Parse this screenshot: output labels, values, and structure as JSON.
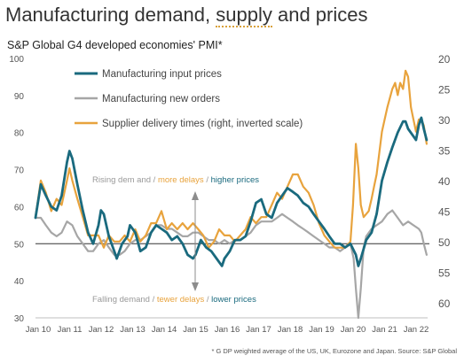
{
  "title": {
    "pre": "Manufacturing demand, ",
    "underlined": "supply",
    "post": " and prices"
  },
  "subtitle": "S&P Global G4 developed economies' PMI*",
  "footnote": "* G DP weighted average of the US, UK, Eurozone and Japan.  Source: S&P Global",
  "annotations": {
    "top": [
      {
        "text": "Rising dem and  / ",
        "color": "#999999"
      },
      {
        "text": "more delays",
        "color": "#e8a33d"
      },
      {
        "text": " / ",
        "color": "#999999"
      },
      {
        "text": "higher prices",
        "color": "#1a6a7e"
      }
    ],
    "bottom": [
      {
        "text": "Falling demand  / ",
        "color": "#999999"
      },
      {
        "text": "tewer delays",
        "color": "#e8a33d"
      },
      {
        "text": " / ",
        "color": "#999999"
      },
      {
        "text": "lower prices",
        "color": "#1a6a7e"
      }
    ]
  },
  "chart_data": {
    "type": "line",
    "grid": false,
    "legend_position": "top-left",
    "x_ticks": [
      "Jan 10",
      "Jan 11",
      "Jan 12",
      "Jan 13",
      "Jan 14",
      "Jan 15",
      "Jan 16",
      "Jan 17",
      "Jan 18",
      "Jan 19",
      "Jan 20",
      "Jan 21",
      "Jan 22"
    ],
    "x_range": [
      2010.0,
      2022.45
    ],
    "y_left": {
      "min": 30,
      "max": 100,
      "ticks": [
        30,
        40,
        50,
        60,
        70,
        80,
        90,
        100
      ]
    },
    "y_right": {
      "min": 20,
      "max": 62.5,
      "inverted": true,
      "ticks": [
        20,
        25,
        30,
        35,
        40,
        45,
        50,
        55,
        60
      ]
    },
    "reference_line": 50,
    "series": [
      {
        "name": "Manufacturing input prices",
        "axis": "left",
        "color": "#1a6a7e",
        "points": [
          [
            2010.0,
            57
          ],
          [
            2010.17,
            66
          ],
          [
            2010.33,
            63
          ],
          [
            2010.5,
            60
          ],
          [
            2010.67,
            59
          ],
          [
            2010.83,
            63
          ],
          [
            2011.0,
            72
          ],
          [
            2011.08,
            75
          ],
          [
            2011.17,
            73
          ],
          [
            2011.33,
            66
          ],
          [
            2011.5,
            59
          ],
          [
            2011.67,
            53
          ],
          [
            2011.83,
            50
          ],
          [
            2012.0,
            55
          ],
          [
            2012.08,
            59
          ],
          [
            2012.17,
            58
          ],
          [
            2012.33,
            52
          ],
          [
            2012.5,
            48
          ],
          [
            2012.58,
            46
          ],
          [
            2012.75,
            50
          ],
          [
            2012.92,
            52
          ],
          [
            2013.0,
            55
          ],
          [
            2013.17,
            53
          ],
          [
            2013.33,
            48
          ],
          [
            2013.5,
            49
          ],
          [
            2013.67,
            53
          ],
          [
            2013.83,
            55
          ],
          [
            2014.0,
            54
          ],
          [
            2014.17,
            53
          ],
          [
            2014.33,
            51
          ],
          [
            2014.5,
            52
          ],
          [
            2014.67,
            50
          ],
          [
            2014.83,
            47
          ],
          [
            2015.0,
            46
          ],
          [
            2015.08,
            47
          ],
          [
            2015.25,
            51
          ],
          [
            2015.42,
            49
          ],
          [
            2015.58,
            48
          ],
          [
            2015.75,
            46
          ],
          [
            2015.92,
            44
          ],
          [
            2016.0,
            46
          ],
          [
            2016.17,
            48
          ],
          [
            2016.33,
            51
          ],
          [
            2016.5,
            51
          ],
          [
            2016.67,
            52
          ],
          [
            2016.83,
            56
          ],
          [
            2017.0,
            61
          ],
          [
            2017.17,
            62
          ],
          [
            2017.33,
            58
          ],
          [
            2017.5,
            57
          ],
          [
            2017.67,
            61
          ],
          [
            2017.83,
            63
          ],
          [
            2018.0,
            65
          ],
          [
            2018.17,
            64
          ],
          [
            2018.33,
            63
          ],
          [
            2018.5,
            61
          ],
          [
            2018.67,
            60
          ],
          [
            2018.83,
            58
          ],
          [
            2019.0,
            56
          ],
          [
            2019.17,
            54
          ],
          [
            2019.33,
            52
          ],
          [
            2019.5,
            50
          ],
          [
            2019.67,
            50
          ],
          [
            2019.83,
            49
          ],
          [
            2020.0,
            50
          ],
          [
            2020.17,
            47
          ],
          [
            2020.25,
            44
          ],
          [
            2020.33,
            46
          ],
          [
            2020.5,
            51
          ],
          [
            2020.67,
            53
          ],
          [
            2020.83,
            58
          ],
          [
            2021.0,
            67
          ],
          [
            2021.17,
            72
          ],
          [
            2021.33,
            76
          ],
          [
            2021.5,
            80
          ],
          [
            2021.67,
            83
          ],
          [
            2021.75,
            83
          ],
          [
            2021.83,
            81
          ],
          [
            2022.0,
            79
          ],
          [
            2022.08,
            78
          ],
          [
            2022.17,
            82
          ],
          [
            2022.25,
            84
          ],
          [
            2022.33,
            81
          ],
          [
            2022.42,
            78
          ]
        ]
      },
      {
        "name": "Manufacturing new orders",
        "axis": "left",
        "color": "#a6a6a6",
        "points": [
          [
            2010.0,
            57
          ],
          [
            2010.17,
            57
          ],
          [
            2010.33,
            55
          ],
          [
            2010.5,
            53
          ],
          [
            2010.67,
            52
          ],
          [
            2010.83,
            53
          ],
          [
            2011.0,
            56
          ],
          [
            2011.17,
            55
          ],
          [
            2011.33,
            52
          ],
          [
            2011.5,
            50
          ],
          [
            2011.67,
            48
          ],
          [
            2011.83,
            48
          ],
          [
            2012.0,
            50
          ],
          [
            2012.17,
            51
          ],
          [
            2012.33,
            49
          ],
          [
            2012.5,
            47
          ],
          [
            2012.67,
            47
          ],
          [
            2012.83,
            48
          ],
          [
            2013.0,
            50
          ],
          [
            2013.17,
            51
          ],
          [
            2013.33,
            51
          ],
          [
            2013.5,
            52
          ],
          [
            2013.67,
            53
          ],
          [
            2013.83,
            55
          ],
          [
            2014.0,
            55
          ],
          [
            2014.17,
            54
          ],
          [
            2014.33,
            54
          ],
          [
            2014.5,
            53
          ],
          [
            2014.67,
            52
          ],
          [
            2014.83,
            52
          ],
          [
            2015.0,
            53
          ],
          [
            2015.17,
            53
          ],
          [
            2015.33,
            52
          ],
          [
            2015.5,
            51
          ],
          [
            2015.67,
            51
          ],
          [
            2015.83,
            50
          ],
          [
            2016.0,
            51
          ],
          [
            2016.17,
            50
          ],
          [
            2016.33,
            51
          ],
          [
            2016.5,
            51
          ],
          [
            2016.67,
            52
          ],
          [
            2016.83,
            53
          ],
          [
            2017.0,
            55
          ],
          [
            2017.17,
            56
          ],
          [
            2017.33,
            56
          ],
          [
            2017.5,
            56
          ],
          [
            2017.67,
            57
          ],
          [
            2017.83,
            58
          ],
          [
            2018.0,
            57
          ],
          [
            2018.17,
            56
          ],
          [
            2018.33,
            55
          ],
          [
            2018.5,
            54
          ],
          [
            2018.67,
            53
          ],
          [
            2018.83,
            52
          ],
          [
            2019.0,
            51
          ],
          [
            2019.17,
            50
          ],
          [
            2019.33,
            49
          ],
          [
            2019.5,
            49
          ],
          [
            2019.67,
            48
          ],
          [
            2019.83,
            49
          ],
          [
            2020.0,
            50
          ],
          [
            2020.1,
            46
          ],
          [
            2020.17,
            38
          ],
          [
            2020.25,
            30
          ],
          [
            2020.33,
            38
          ],
          [
            2020.42,
            49
          ],
          [
            2020.5,
            52
          ],
          [
            2020.67,
            54
          ],
          [
            2020.83,
            55
          ],
          [
            2021.0,
            56
          ],
          [
            2021.17,
            58
          ],
          [
            2021.33,
            59
          ],
          [
            2021.5,
            57
          ],
          [
            2021.67,
            55
          ],
          [
            2021.83,
            56
          ],
          [
            2022.0,
            55
          ],
          [
            2022.17,
            54
          ],
          [
            2022.25,
            53
          ],
          [
            2022.33,
            50
          ],
          [
            2022.42,
            47
          ]
        ]
      },
      {
        "name": "Supplier delivery times (right, inverted scale)",
        "axis": "right",
        "color": "#e8a33d",
        "points": [
          [
            2010.0,
            46
          ],
          [
            2010.17,
            40
          ],
          [
            2010.33,
            42
          ],
          [
            2010.5,
            45
          ],
          [
            2010.67,
            43
          ],
          [
            2010.83,
            44
          ],
          [
            2011.0,
            40
          ],
          [
            2011.08,
            38
          ],
          [
            2011.17,
            40
          ],
          [
            2011.33,
            43
          ],
          [
            2011.5,
            46
          ],
          [
            2011.67,
            49
          ],
          [
            2011.83,
            49
          ],
          [
            2012.0,
            49
          ],
          [
            2012.17,
            51
          ],
          [
            2012.33,
            49
          ],
          [
            2012.5,
            50
          ],
          [
            2012.67,
            50
          ],
          [
            2012.83,
            49
          ],
          [
            2013.0,
            50
          ],
          [
            2013.17,
            48
          ],
          [
            2013.33,
            50
          ],
          [
            2013.5,
            49
          ],
          [
            2013.67,
            47
          ],
          [
            2013.83,
            47
          ],
          [
            2014.0,
            45
          ],
          [
            2014.17,
            48
          ],
          [
            2014.33,
            47
          ],
          [
            2014.5,
            48
          ],
          [
            2014.67,
            47
          ],
          [
            2014.83,
            48
          ],
          [
            2015.0,
            47
          ],
          [
            2015.17,
            48
          ],
          [
            2015.33,
            49
          ],
          [
            2015.5,
            51
          ],
          [
            2015.67,
            50
          ],
          [
            2015.83,
            48
          ],
          [
            2016.0,
            49
          ],
          [
            2016.17,
            49
          ],
          [
            2016.33,
            50
          ],
          [
            2016.5,
            49
          ],
          [
            2016.67,
            48
          ],
          [
            2016.83,
            46
          ],
          [
            2017.0,
            47
          ],
          [
            2017.17,
            46
          ],
          [
            2017.33,
            46
          ],
          [
            2017.5,
            44
          ],
          [
            2017.67,
            42
          ],
          [
            2017.83,
            43
          ],
          [
            2018.0,
            41
          ],
          [
            2018.17,
            39
          ],
          [
            2018.33,
            39
          ],
          [
            2018.5,
            41
          ],
          [
            2018.67,
            42
          ],
          [
            2018.83,
            44
          ],
          [
            2019.0,
            47
          ],
          [
            2019.17,
            49
          ],
          [
            2019.33,
            50
          ],
          [
            2019.5,
            51
          ],
          [
            2019.67,
            51
          ],
          [
            2019.83,
            51
          ],
          [
            2020.0,
            50
          ],
          [
            2020.08,
            44
          ],
          [
            2020.17,
            34
          ],
          [
            2020.25,
            38
          ],
          [
            2020.33,
            44
          ],
          [
            2020.42,
            46
          ],
          [
            2020.58,
            45
          ],
          [
            2020.67,
            43
          ],
          [
            2020.75,
            41
          ],
          [
            2020.83,
            39
          ],
          [
            2021.0,
            32
          ],
          [
            2021.17,
            28
          ],
          [
            2021.33,
            25
          ],
          [
            2021.42,
            24
          ],
          [
            2021.5,
            26
          ],
          [
            2021.58,
            24
          ],
          [
            2021.67,
            25
          ],
          [
            2021.75,
            22
          ],
          [
            2021.83,
            23
          ],
          [
            2021.92,
            28
          ],
          [
            2022.0,
            30
          ],
          [
            2022.08,
            32
          ],
          [
            2022.17,
            30
          ],
          [
            2022.25,
            30
          ],
          [
            2022.33,
            31
          ],
          [
            2022.42,
            34
          ]
        ]
      }
    ]
  }
}
